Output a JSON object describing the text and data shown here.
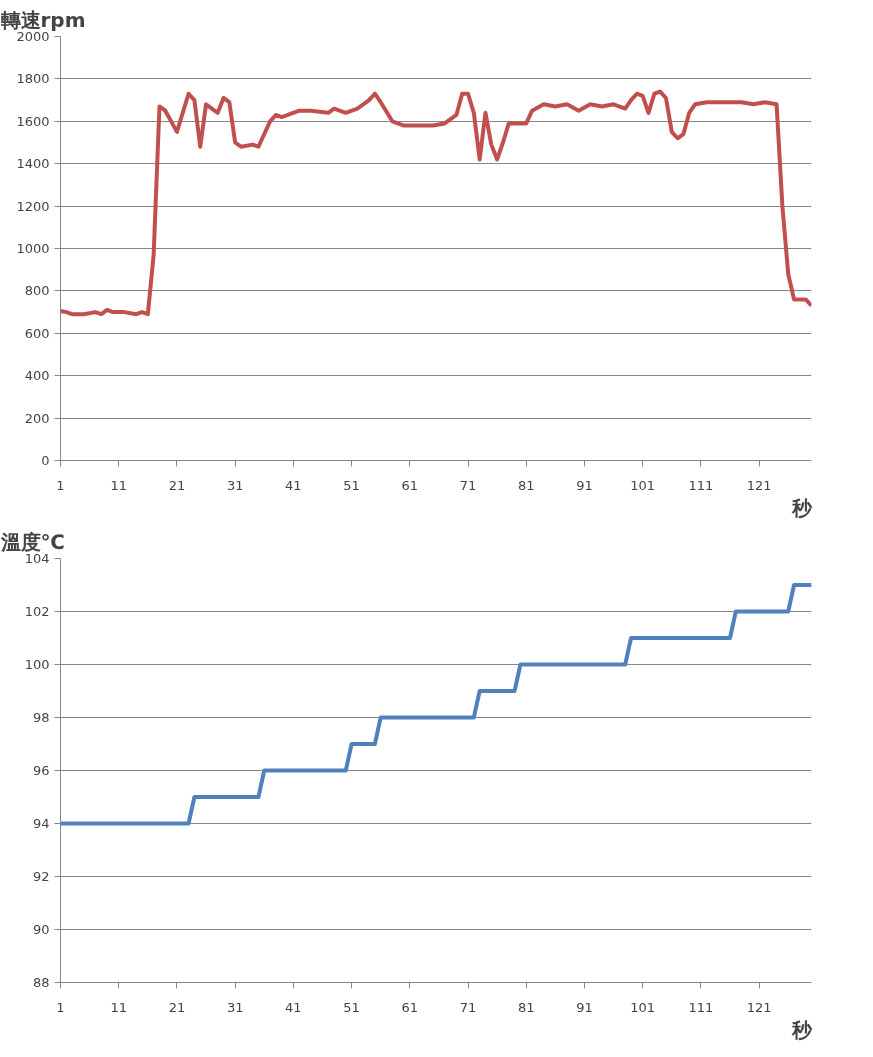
{
  "chart_data": [
    {
      "type": "line",
      "title": "轉速rpm",
      "xlabel": "秒",
      "x": [
        1,
        2,
        3,
        5,
        7,
        8,
        9,
        10,
        12,
        14,
        15,
        16,
        17,
        18,
        19,
        21,
        23,
        24,
        25,
        26,
        28,
        29,
        30,
        31,
        32,
        34,
        35,
        37,
        38,
        39,
        42,
        44,
        47,
        48,
        50,
        52,
        54,
        55,
        56,
        58,
        60,
        63,
        65,
        67,
        69,
        70,
        71,
        72,
        73,
        74,
        75,
        76,
        77,
        78,
        81,
        82,
        84,
        86,
        88,
        90,
        92,
        94,
        96,
        98,
        99,
        100,
        101,
        102,
        103,
        104,
        105,
        106,
        107,
        108,
        109,
        110,
        112,
        114,
        118,
        120,
        122,
        124,
        125,
        126,
        127,
        129,
        130
      ],
      "series": [
        {
          "color": "#c0504d",
          "values": [
            705,
            700,
            690,
            690,
            700,
            690,
            710,
            700,
            700,
            690,
            700,
            690,
            970,
            1670,
            1650,
            1550,
            1730,
            1700,
            1480,
            1680,
            1640,
            1710,
            1690,
            1500,
            1480,
            1490,
            1480,
            1600,
            1630,
            1620,
            1650,
            1650,
            1640,
            1660,
            1640,
            1660,
            1700,
            1730,
            1690,
            1600,
            1580,
            1580,
            1580,
            1590,
            1630,
            1730,
            1730,
            1640,
            1420,
            1640,
            1490,
            1420,
            1500,
            1590,
            1590,
            1650,
            1680,
            1670,
            1680,
            1650,
            1680,
            1670,
            1680,
            1660,
            1700,
            1730,
            1720,
            1640,
            1730,
            1740,
            1710,
            1550,
            1520,
            1540,
            1640,
            1680,
            1690,
            1690,
            1690,
            1680,
            1690,
            1680,
            1200,
            880,
            760,
            760,
            730
          ]
        }
      ],
      "xlim": [
        1,
        130
      ],
      "xticks": [
        1,
        11,
        21,
        31,
        41,
        51,
        61,
        71,
        81,
        91,
        101,
        111,
        121
      ],
      "ylim": [
        0,
        2000
      ],
      "yticks": [
        0,
        200,
        400,
        600,
        800,
        1000,
        1200,
        1400,
        1600,
        1800,
        2000
      ],
      "grid": "y"
    },
    {
      "type": "line",
      "title": "溫度℃",
      "xlabel": "秒",
      "x": [
        1,
        23,
        24,
        35,
        36,
        50,
        51,
        55,
        56,
        72,
        73,
        79,
        80,
        98,
        99,
        116,
        117,
        126,
        127,
        130
      ],
      "series": [
        {
          "color": "#4f81bd",
          "values": [
            94,
            94,
            95,
            95,
            96,
            96,
            97,
            97,
            98,
            98,
            99,
            99,
            100,
            100,
            101,
            101,
            102,
            102,
            103,
            103
          ]
        }
      ],
      "xlim": [
        1,
        130
      ],
      "xticks": [
        1,
        11,
        21,
        31,
        41,
        51,
        61,
        71,
        81,
        91,
        101,
        111,
        121
      ],
      "ylim": [
        88,
        104
      ],
      "yticks": [
        88,
        90,
        92,
        94,
        96,
        98,
        100,
        102,
        104
      ],
      "grid": "y"
    }
  ]
}
